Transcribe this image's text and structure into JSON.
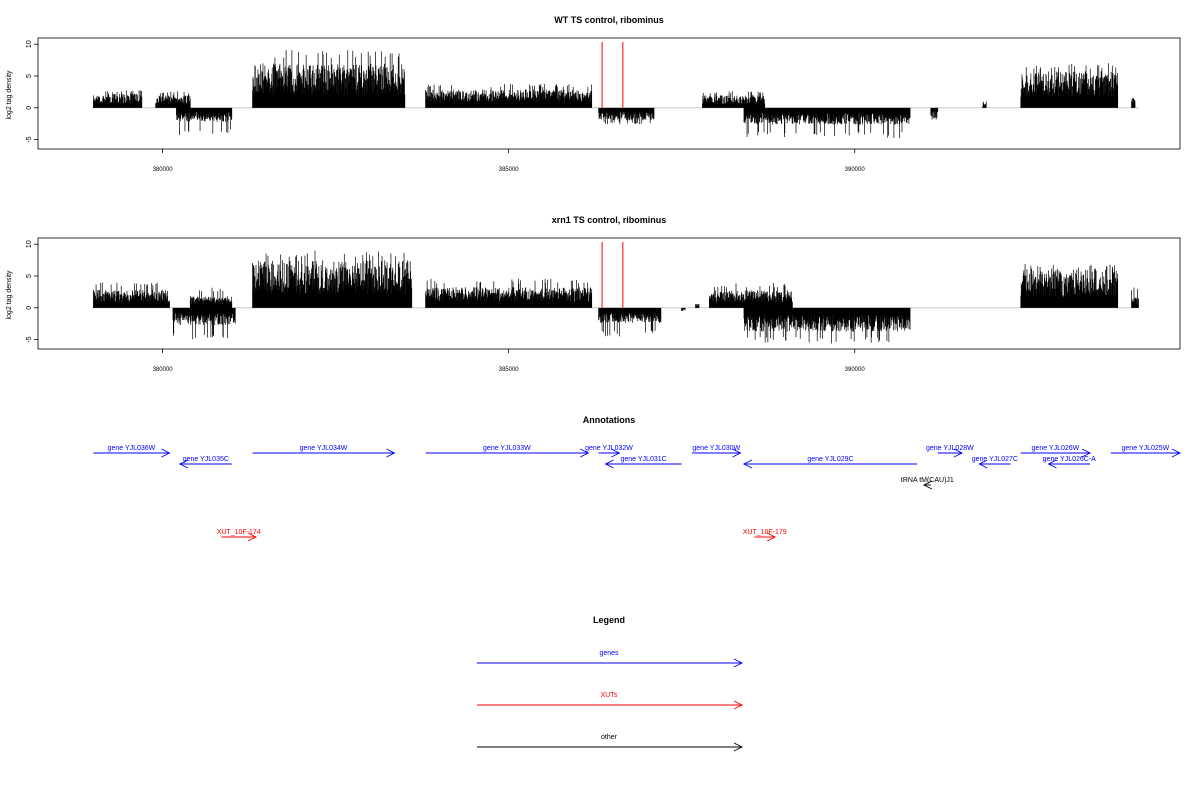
{
  "figure": {
    "colors": {
      "gene": "#0000ff",
      "xut": "#ff0000",
      "other": "#000000",
      "signal": "#000000",
      "marker": "#ff0000",
      "baseline": "#bebebe"
    }
  },
  "chart_data": [
    {
      "type": "bar",
      "title": "WT TS control, ribominus",
      "ylabel": "log2 tag density",
      "xlim": [
        378200,
        394700
      ],
      "ylim": [
        -6,
        10.5
      ],
      "yticks": [
        -5,
        0,
        5,
        10
      ],
      "xticks": [
        380000,
        385000,
        390000
      ],
      "xtick_labels": [
        "380000",
        "385000",
        "390000"
      ],
      "markers": [
        386350,
        386650
      ],
      "plus_segments": [
        {
          "start": 379000,
          "end": 379700,
          "level": 1.8,
          "peak": 2.8
        },
        {
          "start": 379900,
          "end": 380400,
          "level": 1.6,
          "peak": 2.6
        },
        {
          "start": 381300,
          "end": 383500,
          "level": 5.6,
          "peak": 9.3
        },
        {
          "start": 383800,
          "end": 386200,
          "level": 2.3,
          "peak": 3.8
        },
        {
          "start": 387800,
          "end": 388700,
          "level": 1.6,
          "peak": 2.6
        },
        {
          "start": 391850,
          "end": 391900,
          "level": 1.0,
          "peak": 1.0
        },
        {
          "start": 392400,
          "end": 393800,
          "level": 4.6,
          "peak": 7.0
        },
        {
          "start": 394000,
          "end": 394050,
          "level": 1.5,
          "peak": 1.5
        }
      ],
      "minus_segments": [
        {
          "start": 380200,
          "end": 381000,
          "level": -1.8,
          "peak": -4.3
        },
        {
          "start": 386300,
          "end": 387100,
          "level": -1.6,
          "peak": -2.6
        },
        {
          "start": 388400,
          "end": 390800,
          "level": -2.1,
          "peak": -4.8
        },
        {
          "start": 391100,
          "end": 391200,
          "level": -1.5,
          "peak": -2.0
        }
      ]
    },
    {
      "type": "bar",
      "title": "xrn1 TS control, ribominus",
      "ylabel": "log2 tag density",
      "xlim": [
        378200,
        394700
      ],
      "ylim": [
        -6,
        10.5
      ],
      "yticks": [
        -5,
        0,
        5,
        10
      ],
      "xticks": [
        380000,
        385000,
        390000
      ],
      "xtick_labels": [
        "380000",
        "385000",
        "390000"
      ],
      "markers": [
        386350,
        386650
      ],
      "plus_segments": [
        {
          "start": 379000,
          "end": 380100,
          "level": 2.3,
          "peak": 4.0
        },
        {
          "start": 380400,
          "end": 381000,
          "level": 1.5,
          "peak": 3.2
        },
        {
          "start": 381300,
          "end": 383600,
          "level": 6.0,
          "peak": 9.3
        },
        {
          "start": 383800,
          "end": 386200,
          "level": 2.6,
          "peak": 4.6
        },
        {
          "start": 387700,
          "end": 387750,
          "level": 0.6,
          "peak": 0.6
        },
        {
          "start": 387900,
          "end": 389100,
          "level": 2.2,
          "peak": 3.9
        },
        {
          "start": 392400,
          "end": 393800,
          "level": 4.8,
          "peak": 6.9
        },
        {
          "start": 394000,
          "end": 394100,
          "level": 1.5,
          "peak": 3.2
        }
      ],
      "minus_segments": [
        {
          "start": 380150,
          "end": 381050,
          "level": -2.2,
          "peak": -5.0
        },
        {
          "start": 386300,
          "end": 387200,
          "level": -1.9,
          "peak": -4.5
        },
        {
          "start": 387500,
          "end": 387550,
          "level": -0.5,
          "peak": -0.5
        },
        {
          "start": 388400,
          "end": 390800,
          "level": -3.0,
          "peak": -5.6
        }
      ]
    }
  ],
  "annotations": {
    "title": "Annotations",
    "features": [
      {
        "label": "gene YJL036W",
        "start": 379000,
        "end": 380100,
        "strand": "+",
        "row": 0,
        "kind": "gene"
      },
      {
        "label": "gene YJL035C",
        "start": 380250,
        "end": 381000,
        "strand": "-",
        "row": 1,
        "kind": "gene"
      },
      {
        "label": "gene YJL034W",
        "start": 381300,
        "end": 383350,
        "strand": "+",
        "row": 0,
        "kind": "gene"
      },
      {
        "label": "gene YJL033W",
        "start": 383800,
        "end": 386150,
        "strand": "+",
        "row": 0,
        "kind": "gene"
      },
      {
        "label": "gene YJL032W",
        "start": 386300,
        "end": 386600,
        "strand": "+",
        "row": 0,
        "kind": "gene"
      },
      {
        "label": "gene YJL031C",
        "start": 386400,
        "end": 387500,
        "strand": "-",
        "row": 1,
        "kind": "gene"
      },
      {
        "label": "gene YJL030W",
        "start": 387650,
        "end": 388350,
        "strand": "+",
        "row": 0,
        "kind": "gene"
      },
      {
        "label": "gene YJL029C",
        "start": 388400,
        "end": 390900,
        "strand": "-",
        "row": 1,
        "kind": "gene"
      },
      {
        "label": "gene YJL028W",
        "start": 391200,
        "end": 391550,
        "strand": "+",
        "row": 0,
        "kind": "gene"
      },
      {
        "label": "gene YJL027C",
        "start": 391800,
        "end": 392250,
        "strand": "-",
        "row": 1,
        "kind": "gene"
      },
      {
        "label": "gene YJL026W",
        "start": 392400,
        "end": 393400,
        "strand": "+",
        "row": 0,
        "kind": "gene"
      },
      {
        "label": "gene YJL026C-A",
        "start": 392800,
        "end": 393400,
        "strand": "-",
        "row": 1,
        "kind": "gene"
      },
      {
        "label": "gene YJL025W",
        "start": 393700,
        "end": 394700,
        "strand": "+",
        "row": 0,
        "kind": "gene"
      },
      {
        "label": "tRNA tM(CAU)J1",
        "start": 391000,
        "end": 391100,
        "strand": "-",
        "row": 2,
        "kind": "other"
      },
      {
        "label": "XUT_10F-174",
        "start": 380850,
        "end": 381350,
        "strand": "+",
        "row": 5,
        "kind": "xut"
      },
      {
        "label": "XUT_10F-179",
        "start": 388550,
        "end": 388850,
        "strand": "+",
        "row": 5,
        "kind": "xut"
      }
    ]
  },
  "legend": {
    "title": "Legend",
    "items": [
      {
        "label": "genes",
        "kind": "gene"
      },
      {
        "label": "XUTs",
        "kind": "xut"
      },
      {
        "label": "other",
        "kind": "other"
      }
    ]
  }
}
